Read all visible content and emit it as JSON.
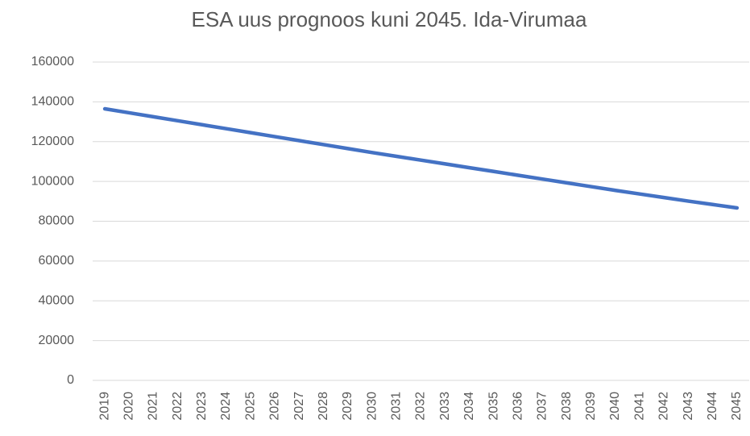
{
  "chart_data": {
    "type": "line",
    "title": "ESA uus prognoos kuni 2045. Ida-Virumaa",
    "categories": [
      "2019",
      "2020",
      "2021",
      "2022",
      "2023",
      "2024",
      "2025",
      "2026",
      "2027",
      "2028",
      "2029",
      "2030",
      "2031",
      "2032",
      "2033",
      "2034",
      "2035",
      "2036",
      "2037",
      "2038",
      "2039",
      "2040",
      "2041",
      "2042",
      "2043",
      "2044",
      "2045"
    ],
    "series": [
      {
        "name": "Ida-Virumaa",
        "color": "#4472c4",
        "values": [
          136500,
          134500,
          132500,
          130500,
          128500,
          126500,
          124500,
          122500,
          120500,
          118500,
          116500,
          114500,
          112600,
          110700,
          108800,
          106900,
          105000,
          103100,
          101200,
          99300,
          97400,
          95500,
          93700,
          91900,
          90100,
          88400,
          86700
        ]
      }
    ],
    "ylim": [
      0,
      160000
    ],
    "yticks": [
      0,
      20000,
      40000,
      60000,
      80000,
      100000,
      120000,
      140000,
      160000
    ],
    "grid": true
  }
}
